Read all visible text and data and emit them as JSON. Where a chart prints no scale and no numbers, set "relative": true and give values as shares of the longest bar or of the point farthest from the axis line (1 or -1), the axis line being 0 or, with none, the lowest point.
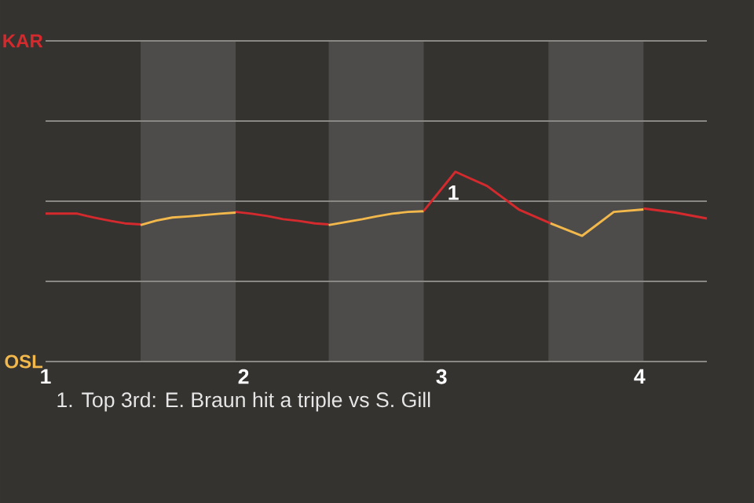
{
  "chart_data": {
    "type": "line",
    "relative": true,
    "xlim": [
      1.0,
      4.34
    ],
    "xticks": [
      1,
      2,
      3,
      4
    ],
    "marker": "none",
    "line_style": "solid",
    "bands": [
      {
        "axis": "x",
        "from": 1.48,
        "to": 1.96,
        "color": "#4d4c4a"
      },
      {
        "axis": "x",
        "from": 2.43,
        "to": 2.91,
        "color": "#4d4c4a"
      },
      {
        "axis": "x",
        "from": 3.54,
        "to": 4.02,
        "color": "#4d4c4a"
      }
    ],
    "series": [
      {
        "color": "#d42a2e",
        "x": [
          1.0,
          1.16,
          1.21,
          1.25,
          1.33,
          1.4,
          1.48
        ],
        "values": [
          -0.36,
          -0.36,
          -0.43,
          -0.48,
          -0.57,
          -0.64,
          -0.67
        ]
      },
      {
        "color": "#f2b84b",
        "x": [
          1.48,
          1.56,
          1.64,
          1.72,
          1.8,
          1.88,
          1.96
        ],
        "values": [
          -0.69,
          -0.56,
          -0.47,
          -0.44,
          -0.4,
          -0.36,
          -0.33
        ]
      },
      {
        "color": "#d42a2e",
        "x": [
          1.96,
          2.04,
          2.12,
          2.2,
          2.28,
          2.36,
          2.43
        ],
        "values": [
          -0.31,
          -0.36,
          -0.43,
          -0.52,
          -0.57,
          -0.64,
          -0.67
        ]
      },
      {
        "color": "#f2b84b",
        "x": [
          2.43,
          2.52,
          2.6,
          2.67,
          2.75,
          2.83,
          2.91
        ],
        "values": [
          -0.69,
          -0.6,
          -0.52,
          -0.44,
          -0.36,
          -0.31,
          -0.29
        ]
      },
      {
        "color": "#d42a2e",
        "x": [
          2.91,
          3.07,
          3.12,
          3.23,
          3.39,
          3.55
        ],
        "values": [
          -0.28,
          0.85,
          0.72,
          0.44,
          -0.24,
          -0.64
        ]
      },
      {
        "color": "#f2b84b",
        "x": [
          3.55,
          3.71,
          3.87,
          4.02
        ],
        "values": [
          -0.64,
          -1,
          -0.31,
          -0.24
        ]
      },
      {
        "color": "#d42a2e",
        "x": [
          4.02,
          4.18,
          4.34
        ],
        "values": [
          -0.21,
          -0.33,
          -0.5
        ]
      }
    ],
    "annotations": [
      {
        "text": "1",
        "x": 3.07,
        "y": 0.85
      },
      "KAR",
      "OSL",
      "1. Top 3rd: E. Braun hit a triple vs S. Gill"
    ]
  }
}
